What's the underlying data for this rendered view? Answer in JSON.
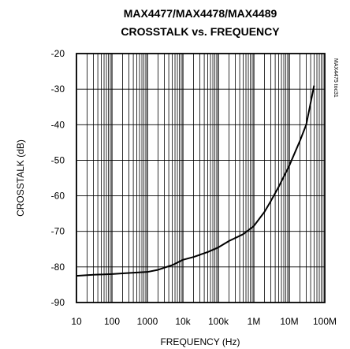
{
  "chart_data": {
    "type": "line",
    "title": "MAX4477/MAX4478/MAX4489",
    "subtitle": "CROSSTALK vs. FREQUENCY",
    "xlabel": "FREQUENCY (Hz)",
    "ylabel": "CROSSTALK (dB)",
    "x_scale": "log",
    "xlim": [
      10,
      100000000
    ],
    "ylim": [
      -90,
      -20
    ],
    "grid": true,
    "x_tick_labels": [
      "10",
      "100",
      "1000",
      "10k",
      "100k",
      "1M",
      "10M",
      "100M"
    ],
    "x_tick_values": [
      10,
      100,
      1000,
      10000,
      100000,
      1000000,
      10000000,
      100000000
    ],
    "y_tick_labels": [
      "-20",
      "-30",
      "-40",
      "-50",
      "-60",
      "-70",
      "-80",
      "-90"
    ],
    "y_tick_values": [
      -20,
      -30,
      -40,
      -50,
      -60,
      -70,
      -80,
      -90
    ],
    "annotation": "MAX4475 toc31",
    "series": [
      {
        "x": [
          10,
          30,
          100,
          300,
          1000,
          2000,
          3000,
          5000,
          10000,
          20000,
          50000,
          100000,
          200000,
          500000,
          1000000,
          2000000,
          3000000,
          5000000,
          10000000,
          20000000,
          30000000,
          50000000
        ],
        "y": [
          -82.5,
          -82.2,
          -82,
          -81.7,
          -81.4,
          -80.8,
          -80.2,
          -79.5,
          -78,
          -77.2,
          -75.8,
          -74.5,
          -72.7,
          -70.8,
          -68.5,
          -64.5,
          -61.5,
          -57.5,
          -51.5,
          -44.5,
          -40,
          -29
        ]
      }
    ]
  }
}
